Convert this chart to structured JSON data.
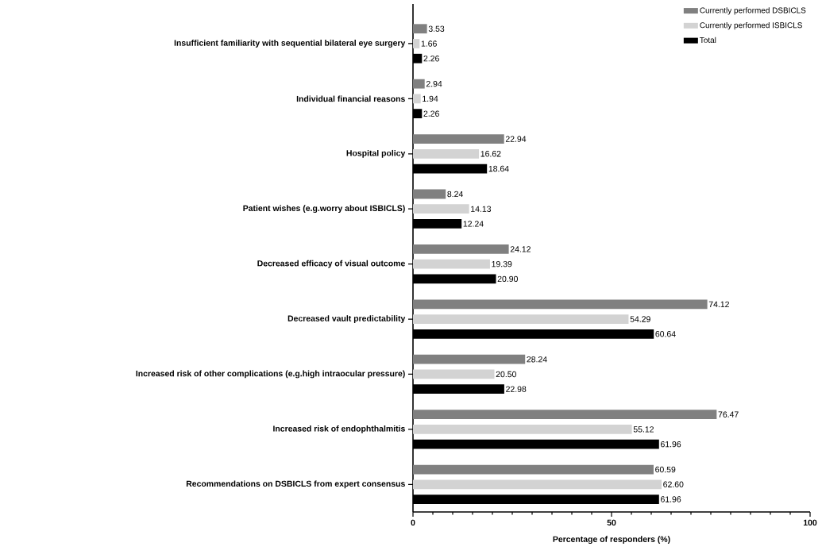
{
  "chart_data": {
    "type": "bar",
    "orientation": "horizontal",
    "xlabel": "Percentage of responders (%)",
    "categories": [
      "Insufficient familiarity with sequential bilateral eye surgery",
      "Individual financial reasons",
      "Hospital policy",
      "Patient wishes (e.g.worry about ISBICLS)",
      "Decreased efficacy of visual outcome",
      "Decreased vault predictability",
      "Increased risk of other complications (e.g.high intraocular pressure)",
      "Increased risk of endophthalmitis",
      "Recommendations on DSBICLS from expert consensus"
    ],
    "series": [
      {
        "name": "Currently performed DSBICLS",
        "color": "#808080",
        "values": [
          3.53,
          2.94,
          22.94,
          8.24,
          24.12,
          74.12,
          28.24,
          76.47,
          60.59
        ],
        "value_labels": [
          "3.53",
          "2.94",
          "22.94",
          "8.24",
          "24.12",
          "74.12",
          "28.24",
          "76.47",
          "60.59"
        ]
      },
      {
        "name": "Currently performed ISBICLS",
        "color": "#d3d3d3",
        "values": [
          1.66,
          1.94,
          16.62,
          14.13,
          19.39,
          54.29,
          20.5,
          55.12,
          62.6
        ],
        "value_labels": [
          "1.66",
          "1.94",
          "16.62",
          "14.13",
          "19.39",
          "54.29",
          "20.50",
          "55.12",
          "62.60"
        ]
      },
      {
        "name": "Total",
        "color": "#000000",
        "values": [
          2.26,
          2.26,
          18.64,
          12.24,
          20.9,
          60.64,
          22.98,
          61.96,
          61.96
        ],
        "value_labels": [
          "2.26",
          "2.26",
          "18.64",
          "12.24",
          "20.90",
          "60.64",
          "22.98",
          "61.96",
          "61.96"
        ]
      }
    ],
    "xlim": [
      0,
      100
    ],
    "xticks": [
      0,
      {
        "value": 5,
        "label": null
      },
      {
        "value": 10,
        "label": null
      },
      {
        "value": 15,
        "label": null
      },
      {
        "value": 20,
        "label": null
      },
      {
        "value": 25,
        "label": null
      },
      {
        "value": 30,
        "label": null
      },
      {
        "value": 35,
        "label": null
      },
      {
        "value": 40,
        "label": null
      },
      {
        "value": 45,
        "label": null
      },
      50,
      {
        "value": 55,
        "label": null
      },
      {
        "value": 60,
        "label": null
      },
      {
        "value": 65,
        "label": null
      },
      {
        "value": 70,
        "label": null
      },
      {
        "value": 75,
        "label": null
      },
      {
        "value": 80,
        "label": null
      },
      {
        "value": 85,
        "label": null
      },
      {
        "value": 90,
        "label": null
      },
      {
        "value": 95,
        "label": null
      },
      100
    ],
    "legend": "top right"
  }
}
